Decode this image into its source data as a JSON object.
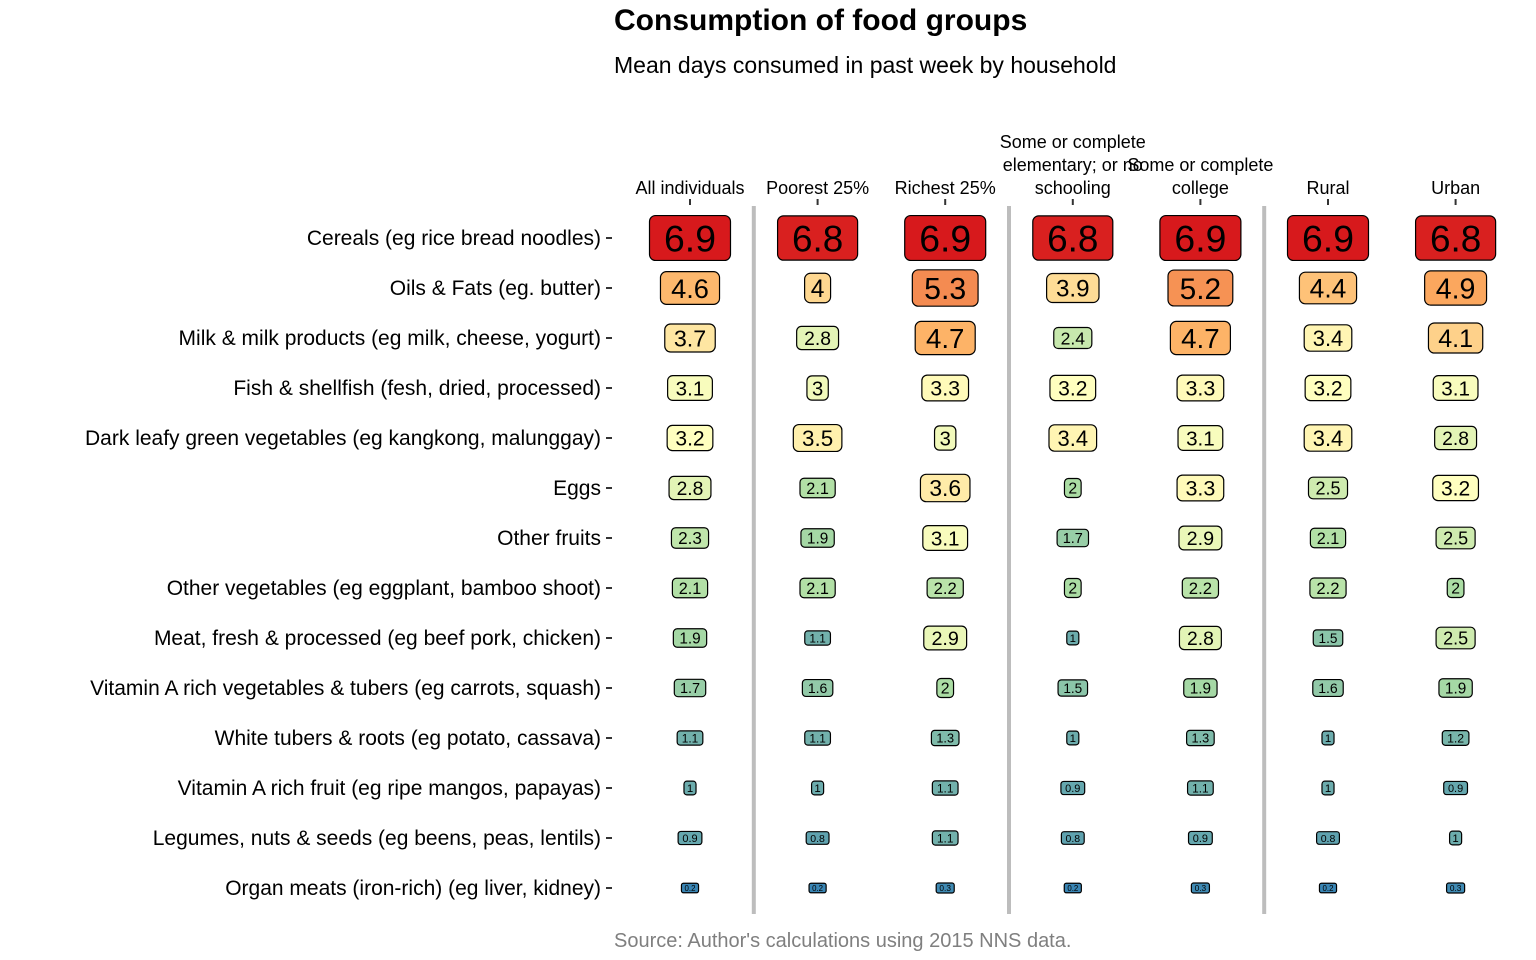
{
  "title": "Consumption of food groups",
  "subtitle": "Mean days consumed in past week by household",
  "source": "Source: Author's calculations using 2015 NNS data.",
  "chart_data": {
    "type": "heatmap",
    "title": "Consumption of food groups",
    "subtitle": "Mean days consumed in past week by household",
    "columns": [
      {
        "label": [
          "All individuals"
        ],
        "group": 1
      },
      {
        "label": [
          "Poorest 25%"
        ],
        "group": 2
      },
      {
        "label": [
          "Richest 25%"
        ],
        "group": 2
      },
      {
        "label": [
          "Some or complete",
          "elementary; or no",
          "schooling"
        ],
        "group": 3
      },
      {
        "label": [
          "Some or complete",
          "college"
        ],
        "group": 3
      },
      {
        "label": [
          "Rural"
        ],
        "group": 4
      },
      {
        "label": [
          "Urban"
        ],
        "group": 4
      }
    ],
    "rows": [
      {
        "label": "Cereals (eg rice bread noodles)",
        "values": [
          6.9,
          6.8,
          6.9,
          6.8,
          6.9,
          6.9,
          6.8
        ]
      },
      {
        "label": "Oils & Fats (eg. butter)",
        "values": [
          4.6,
          4,
          5.3,
          3.9,
          5.2,
          4.4,
          4.9
        ]
      },
      {
        "label": "Milk & milk products (eg milk, cheese, yogurt)",
        "values": [
          3.7,
          2.8,
          4.7,
          2.4,
          4.7,
          3.4,
          4.1
        ]
      },
      {
        "label": "Fish & shellfish (fesh, dried, processed)",
        "values": [
          3.1,
          3,
          3.3,
          3.2,
          3.3,
          3.2,
          3.1
        ]
      },
      {
        "label": "Dark leafy green vegetables (eg kangkong, malunggay)",
        "values": [
          3.2,
          3.5,
          3,
          3.4,
          3.1,
          3.4,
          2.8
        ]
      },
      {
        "label": "Eggs",
        "values": [
          2.8,
          2.1,
          3.6,
          2,
          3.3,
          2.5,
          3.2
        ]
      },
      {
        "label": "Other fruits",
        "values": [
          2.3,
          1.9,
          3.1,
          1.7,
          2.9,
          2.1,
          2.5
        ]
      },
      {
        "label": "Other vegetables (eg eggplant, bamboo shoot)",
        "values": [
          2.1,
          2.1,
          2.2,
          2,
          2.2,
          2.2,
          2
        ]
      },
      {
        "label": "Meat, fresh & processed (eg beef pork, chicken)",
        "values": [
          1.9,
          1.1,
          2.9,
          1,
          2.8,
          1.5,
          2.5
        ]
      },
      {
        "label": "Vitamin A rich vegetables & tubers (eg carrots, squash)",
        "values": [
          1.7,
          1.6,
          2,
          1.5,
          1.9,
          1.6,
          1.9
        ]
      },
      {
        "label": "White tubers & roots (eg potato, cassava)",
        "values": [
          1.1,
          1.1,
          1.3,
          1,
          1.3,
          1,
          1.2
        ]
      },
      {
        "label": "Vitamin A rich fruit (eg ripe mangos, papayas)",
        "values": [
          1,
          1,
          1.1,
          0.9,
          1.1,
          1,
          0.9
        ]
      },
      {
        "label": "Legumes, nuts & seeds (eg beens, peas, lentils)",
        "values": [
          0.9,
          0.8,
          1.1,
          0.8,
          0.9,
          0.8,
          1
        ]
      },
      {
        "label": "Organ meats (iron-rich) (eg liver, kidney)",
        "values": [
          0.2,
          0.2,
          0.3,
          0.2,
          0.3,
          0.2,
          0.3
        ]
      }
    ],
    "color_scale": "Spectral (red = high, blue = low)",
    "color_stops": [
      "#2c7bb6",
      "#abdda4",
      "#ffffbf",
      "#fdae61",
      "#d7191c"
    ],
    "grid": false,
    "legend": "none"
  }
}
